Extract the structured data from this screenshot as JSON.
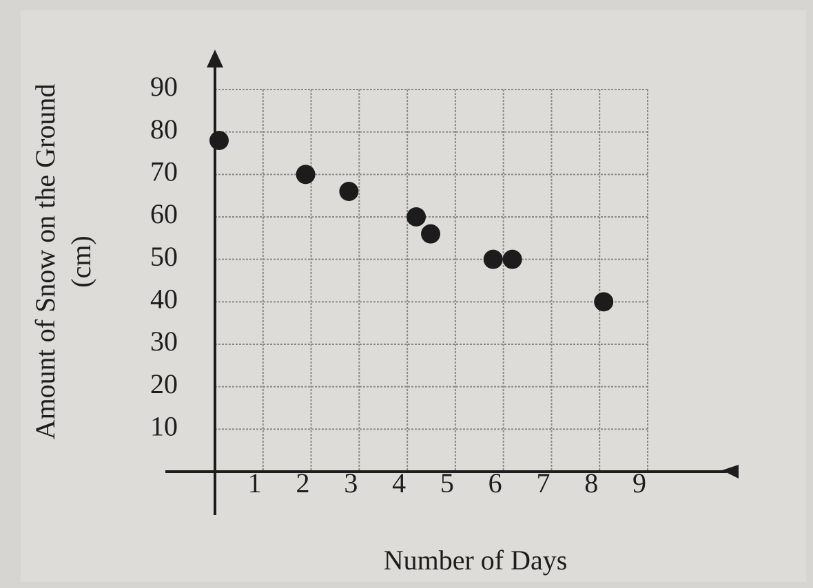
{
  "chart_data": {
    "type": "scatter",
    "xlabel": "Number of Days",
    "ylabel": [
      "Amount of Snow on the Ground",
      "(cm)"
    ],
    "x": [
      0,
      1.8,
      2.7,
      4.1,
      4.4,
      5.7,
      6.1,
      8.0
    ],
    "values": [
      78,
      70,
      66,
      60,
      56,
      50,
      50,
      40
    ],
    "color": "#1c1c1c",
    "xlim": [
      0,
      9
    ],
    "ylim": [
      0,
      90
    ],
    "xticks": [
      1,
      2,
      3,
      4,
      5,
      6,
      7,
      8,
      9
    ],
    "yticks": [
      10,
      20,
      30,
      40,
      50,
      60,
      70,
      80,
      90
    ],
    "grid": true
  }
}
